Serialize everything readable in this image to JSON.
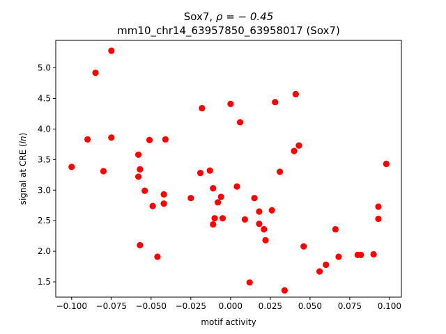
{
  "chart_data": {
    "type": "scatter",
    "title_line1_prefix": "Sox7, ",
    "title_line1_math": "ρ = − 0.45",
    "title_line2": "mm10_chr14_63957850_63958017 (Sox7)",
    "xlabel": "motif activity",
    "ylabel_prefix": "signal at CRE (",
    "ylabel_math": "ln",
    "ylabel_suffix": ")",
    "xlim": [
      -0.11,
      0.1075
    ],
    "ylim": [
      1.25,
      5.45
    ],
    "x_ticks": [
      -0.1,
      -0.075,
      -0.05,
      -0.025,
      0.0,
      0.025,
      0.05,
      0.075,
      0.1
    ],
    "x_tick_labels": [
      "−0.100",
      "−0.075",
      "−0.050",
      "−0.025",
      "0.000",
      "0.025",
      "0.050",
      "0.075",
      "0.100"
    ],
    "y_ticks": [
      1.5,
      2.0,
      2.5,
      3.0,
      3.5,
      4.0,
      4.5,
      5.0
    ],
    "y_tick_labels": [
      "1.5",
      "2.0",
      "2.5",
      "3.0",
      "3.5",
      "4.0",
      "4.5",
      "5.0"
    ],
    "point_color": "#ff0000",
    "grid": false,
    "points": [
      {
        "x": -0.1,
        "y": 3.38
      },
      {
        "x": -0.09,
        "y": 3.83
      },
      {
        "x": -0.085,
        "y": 4.92
      },
      {
        "x": -0.08,
        "y": 3.31
      },
      {
        "x": -0.075,
        "y": 5.28
      },
      {
        "x": -0.075,
        "y": 3.86
      },
      {
        "x": -0.058,
        "y": 3.58
      },
      {
        "x": -0.057,
        "y": 3.34
      },
      {
        "x": -0.058,
        "y": 3.22
      },
      {
        "x": -0.057,
        "y": 2.1
      },
      {
        "x": -0.054,
        "y": 2.99
      },
      {
        "x": -0.051,
        "y": 3.82
      },
      {
        "x": -0.049,
        "y": 2.74
      },
      {
        "x": -0.046,
        "y": 1.91
      },
      {
        "x": -0.042,
        "y": 2.93
      },
      {
        "x": -0.042,
        "y": 2.78
      },
      {
        "x": -0.041,
        "y": 3.83
      },
      {
        "x": -0.025,
        "y": 2.87
      },
      {
        "x": -0.019,
        "y": 3.28
      },
      {
        "x": -0.018,
        "y": 4.34
      },
      {
        "x": -0.013,
        "y": 3.32
      },
      {
        "x": -0.011,
        "y": 3.03
      },
      {
        "x": -0.01,
        "y": 2.54
      },
      {
        "x": -0.011,
        "y": 2.44
      },
      {
        "x": -0.008,
        "y": 2.8
      },
      {
        "x": -0.006,
        "y": 2.89
      },
      {
        "x": -0.005,
        "y": 2.54
      },
      {
        "x": 0.0,
        "y": 4.41
      },
      {
        "x": 0.004,
        "y": 3.06
      },
      {
        "x": 0.006,
        "y": 4.11
      },
      {
        "x": 0.009,
        "y": 2.52
      },
      {
        "x": 0.012,
        "y": 1.49
      },
      {
        "x": 0.015,
        "y": 2.87
      },
      {
        "x": 0.018,
        "y": 2.65
      },
      {
        "x": 0.018,
        "y": 2.45
      },
      {
        "x": 0.021,
        "y": 2.36
      },
      {
        "x": 0.022,
        "y": 2.18
      },
      {
        "x": 0.026,
        "y": 2.67
      },
      {
        "x": 0.028,
        "y": 4.44
      },
      {
        "x": 0.031,
        "y": 3.3
      },
      {
        "x": 0.034,
        "y": 1.36
      },
      {
        "x": 0.04,
        "y": 3.64
      },
      {
        "x": 0.041,
        "y": 4.57
      },
      {
        "x": 0.043,
        "y": 3.73
      },
      {
        "x": 0.046,
        "y": 2.08
      },
      {
        "x": 0.056,
        "y": 1.67
      },
      {
        "x": 0.06,
        "y": 1.78
      },
      {
        "x": 0.066,
        "y": 2.36
      },
      {
        "x": 0.068,
        "y": 1.91
      },
      {
        "x": 0.08,
        "y": 1.94
      },
      {
        "x": 0.082,
        "y": 1.94
      },
      {
        "x": 0.09,
        "y": 1.95
      },
      {
        "x": 0.093,
        "y": 2.73
      },
      {
        "x": 0.093,
        "y": 2.53
      },
      {
        "x": 0.098,
        "y": 3.43
      }
    ]
  }
}
